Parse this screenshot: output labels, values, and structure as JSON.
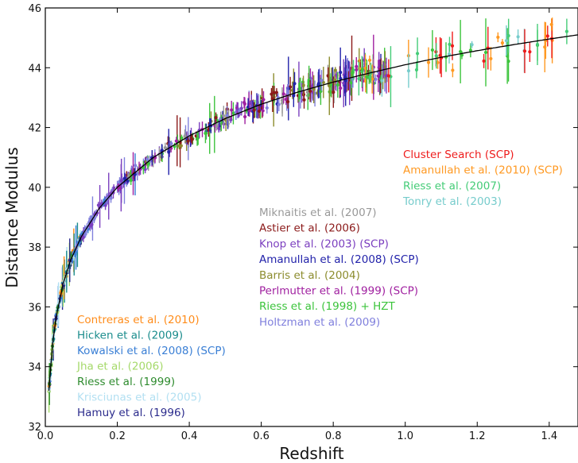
{
  "chart_data": {
    "type": "scatter",
    "xlabel": "Redshift",
    "ylabel": "Distance Modulus",
    "xlim": [
      0.0,
      1.48
    ],
    "ylim": [
      32,
      46
    ],
    "x_ticks": [
      "0.0",
      "0.2",
      "0.4",
      "0.6",
      "0.8",
      "1.0",
      "1.2",
      "1.4"
    ],
    "y_ticks": [
      "32",
      "34",
      "36",
      "38",
      "40",
      "42",
      "44",
      "46"
    ],
    "grid": false,
    "model_curve": {
      "color": "#000000",
      "x": [
        0.01,
        0.02,
        0.03,
        0.05,
        0.07,
        0.1,
        0.15,
        0.2,
        0.3,
        0.4,
        0.5,
        0.6,
        0.7,
        0.8,
        0.9,
        1.0,
        1.1,
        1.2,
        1.3,
        1.4,
        1.48
      ],
      "y": [
        33.2,
        34.75,
        35.65,
        36.8,
        37.55,
        38.35,
        39.3,
        40.0,
        41.0,
        41.72,
        42.3,
        42.78,
        43.18,
        43.52,
        43.82,
        44.1,
        44.35,
        44.57,
        44.77,
        44.96,
        45.1
      ]
    },
    "legend_groups": [
      {
        "placement": "lower-left",
        "entries": [
          {
            "label": "Contreras et al. (2010)",
            "color": "#ff8c1a"
          },
          {
            "label": "Hicken et al. (2009)",
            "color": "#1a8c8c"
          },
          {
            "label": "Kowalski et al. (2008) (SCP)",
            "color": "#3a7fd5"
          },
          {
            "label": "Jha et al. (2006)",
            "color": "#a5d96a"
          },
          {
            "label": "Riess et al. (1999)",
            "color": "#2e8b2e"
          },
          {
            "label": "Krisciunas et al. (2005)",
            "color": "#b3e0f2"
          },
          {
            "label": "Hamuy et al. (1996)",
            "color": "#2b2b8c"
          }
        ]
      },
      {
        "placement": "center",
        "entries": [
          {
            "label": "Miknaitis et al. (2007)",
            "color": "#999999"
          },
          {
            "label": "Astier et al. (2006)",
            "color": "#8b1a1a"
          },
          {
            "label": "Knop et al. (2003) (SCP)",
            "color": "#7b3fbf"
          },
          {
            "label": "Amanullah et al. (2008) (SCP)",
            "color": "#2222aa"
          },
          {
            "label": "Barris et al. (2004)",
            "color": "#8c8c2e"
          },
          {
            "label": "Perlmutter et al. (1999) (SCP)",
            "color": "#a020a0"
          },
          {
            "label": "Riess et al. (1998) + HZT",
            "color": "#3cc43c"
          },
          {
            "label": "Holtzman et al. (2009)",
            "color": "#8080dd"
          }
        ]
      },
      {
        "placement": "upper-right",
        "entries": [
          {
            "label": "Cluster Search (SCP)",
            "color": "#ee1c1c"
          },
          {
            "label": "Amanullah et al. (2010) (SCP)",
            "color": "#ff9922"
          },
          {
            "label": "Riess et al. (2007)",
            "color": "#44cc77"
          },
          {
            "label": "Tonry et al. (2003)",
            "color": "#77cccc"
          }
        ]
      }
    ]
  }
}
